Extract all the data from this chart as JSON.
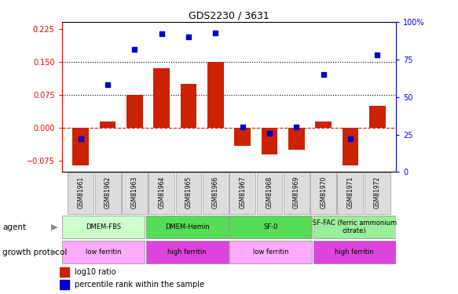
{
  "title": "GDS2230 / 3631",
  "samples": [
    "GSM81961",
    "GSM81962",
    "GSM81963",
    "GSM81964",
    "GSM81965",
    "GSM81966",
    "GSM81967",
    "GSM81968",
    "GSM81969",
    "GSM81970",
    "GSM81971",
    "GSM81972"
  ],
  "log10_ratio": [
    -0.085,
    0.015,
    0.075,
    0.135,
    0.1,
    0.15,
    -0.04,
    -0.06,
    -0.05,
    0.015,
    -0.085,
    0.05
  ],
  "percentile_rank": [
    22,
    58,
    82,
    92,
    90,
    93,
    30,
    26,
    30,
    65,
    22,
    78
  ],
  "ylim_left": [
    -0.1,
    0.24
  ],
  "ylim_right": [
    0,
    100
  ],
  "yticks_left": [
    -0.075,
    0,
    0.075,
    0.15,
    0.225
  ],
  "yticks_right": [
    0,
    25,
    50,
    75,
    100
  ],
  "hlines": [
    0.075,
    0.15
  ],
  "bar_color": "#cc2200",
  "dot_color": "#0000cc",
  "zero_line_color": "#cc2200",
  "agent_groups": [
    {
      "label": "DMEM-FBS",
      "start": 0,
      "end": 3,
      "color": "#ccffcc"
    },
    {
      "label": "DMEM-Hemin",
      "start": 3,
      "end": 6,
      "color": "#55dd55"
    },
    {
      "label": "SF-0",
      "start": 6,
      "end": 9,
      "color": "#55dd55"
    },
    {
      "label": "SF-FAC (ferric ammonium\ncitrate)",
      "start": 9,
      "end": 12,
      "color": "#99ee99"
    }
  ],
  "protocol_groups": [
    {
      "label": "low ferritin",
      "start": 0,
      "end": 3,
      "color": "#ffaaff"
    },
    {
      "label": "high ferritin",
      "start": 3,
      "end": 6,
      "color": "#dd44dd"
    },
    {
      "label": "low ferritin",
      "start": 6,
      "end": 9,
      "color": "#ffaaff"
    },
    {
      "label": "high ferritin",
      "start": 9,
      "end": 12,
      "color": "#dd44dd"
    }
  ],
  "legend_items": [
    {
      "label": "log10 ratio",
      "color": "#cc2200"
    },
    {
      "label": "percentile rank within the sample",
      "color": "#0000cc"
    }
  ]
}
